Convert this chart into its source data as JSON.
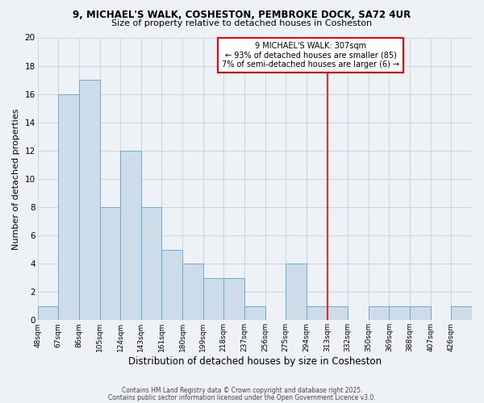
{
  "title1": "9, MICHAEL'S WALK, COSHESTON, PEMBROKE DOCK, SA72 4UR",
  "title2": "Size of property relative to detached houses in Cosheston",
  "xlabel": "Distribution of detached houses by size in Cosheston",
  "ylabel": "Number of detached properties",
  "bin_labels": [
    "48sqm",
    "67sqm",
    "86sqm",
    "105sqm",
    "124sqm",
    "143sqm",
    "161sqm",
    "180sqm",
    "199sqm",
    "218sqm",
    "237sqm",
    "256sqm",
    "275sqm",
    "294sqm",
    "313sqm",
    "332sqm",
    "350sqm",
    "369sqm",
    "388sqm",
    "407sqm",
    "426sqm"
  ],
  "n_bins": 21,
  "heights": [
    1,
    16,
    17,
    8,
    12,
    8,
    5,
    4,
    3,
    3,
    1,
    0,
    4,
    1,
    1,
    0,
    1,
    1,
    1,
    0,
    1
  ],
  "bar_color": "#ccdce8",
  "bar_edge_color": "#6aaad4",
  "grid_color": "#c8d4dc",
  "red_line_bin": 14,
  "ylim": [
    0,
    20
  ],
  "yticks": [
    0,
    2,
    4,
    6,
    8,
    10,
    12,
    14,
    16,
    18,
    20
  ],
  "annotation_line1": "9 MICHAEL'S WALK: 307sqm",
  "annotation_line2": "← 93% of detached houses are smaller (85)",
  "annotation_line3": "7% of semi-detached houses are larger (6) →",
  "footnote1": "Contains HM Land Registry data © Crown copyright and database right 2025.",
  "footnote2": "Contains public sector information licensed under the Open Government Licence v3.0.",
  "background_color": "#eef2f7"
}
